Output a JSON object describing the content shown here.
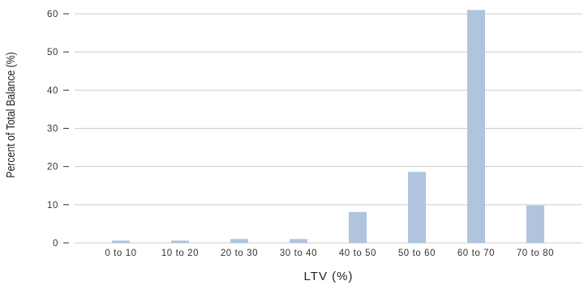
{
  "chart_data": {
    "type": "bar",
    "title": "",
    "xlabel": "LTV (%)",
    "ylabel": "Percent of Total Balance (%)",
    "categories": [
      "0 to 10",
      "10 to 20",
      "20 to 30",
      "30 to 40",
      "40 to 50",
      "50 to 60",
      "60 to 70",
      "70 to 80"
    ],
    "values": [
      0.6,
      0.6,
      1.0,
      1.0,
      8.1,
      18.6,
      61.0,
      9.8
    ],
    "ylim": [
      0,
      62
    ],
    "yticks": [
      0,
      10,
      20,
      30,
      40,
      50,
      60
    ],
    "grid": "horizontal",
    "legend": "none",
    "colors": {
      "bar": "#b0c4de",
      "grid": "#cccccc",
      "text": "#333333"
    }
  }
}
